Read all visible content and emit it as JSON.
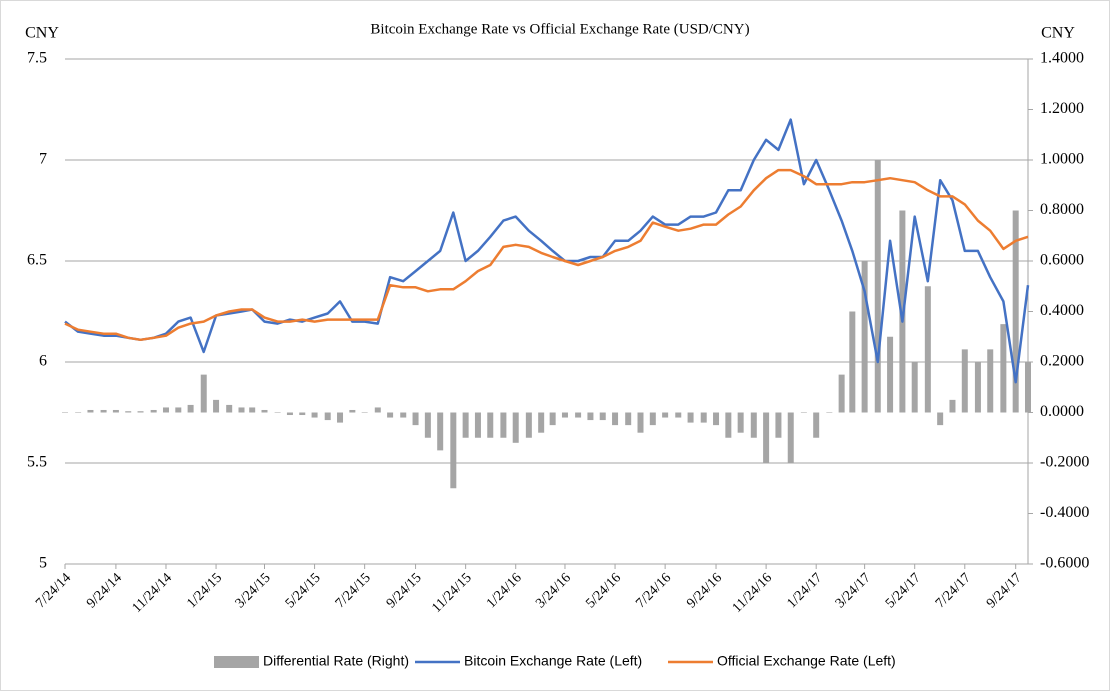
{
  "chart_data": {
    "type": "bar-line",
    "title": "Bitcoin Exchange Rate vs Official Exchange Rate (USD/CNY)",
    "y_label": "CNY",
    "y2_label": "CNY",
    "x": [
      "7/24/14",
      "8/9/14",
      "8/24/14",
      "9/9/14",
      "9/24/14",
      "10/9/14",
      "10/24/14",
      "11/9/14",
      "11/24/14",
      "12/9/14",
      "12/24/14",
      "1/9/15",
      "1/24/15",
      "2/9/15",
      "2/24/15",
      "3/9/15",
      "3/24/15",
      "4/9/15",
      "4/24/15",
      "5/9/15",
      "5/24/15",
      "6/9/15",
      "6/24/15",
      "7/9/15",
      "7/24/15",
      "8/9/15",
      "8/24/15",
      "9/9/15",
      "9/24/15",
      "10/9/15",
      "10/24/15",
      "11/9/15",
      "11/24/15",
      "12/9/15",
      "12/24/15",
      "1/9/16",
      "1/24/16",
      "2/9/16",
      "2/24/16",
      "3/9/16",
      "3/24/16",
      "4/9/16",
      "4/24/16",
      "5/9/16",
      "5/24/16",
      "6/9/16",
      "6/24/16",
      "7/9/16",
      "7/24/16",
      "8/9/16",
      "8/24/16",
      "9/9/16",
      "9/24/16",
      "10/9/16",
      "10/24/16",
      "11/9/16",
      "11/24/16",
      "12/9/16",
      "12/24/16",
      "1/9/17",
      "1/24/17",
      "2/9/17",
      "2/24/17",
      "3/9/17",
      "3/24/17",
      "4/9/17",
      "4/24/17",
      "5/9/17",
      "5/24/17",
      "6/9/17",
      "6/24/17",
      "7/9/17",
      "7/24/17",
      "8/9/17",
      "8/24/17",
      "9/9/17",
      "9/24/17",
      "10/9/17"
    ],
    "xlim": [
      "7/24/14",
      "10/9/17"
    ],
    "xticks": [
      "7/24/14",
      "9/24/14",
      "11/24/14",
      "1/24/15",
      "3/24/15",
      "5/24/15",
      "7/24/15",
      "9/24/15",
      "11/24/15",
      "1/24/16",
      "3/24/16",
      "5/24/16",
      "7/24/16",
      "9/24/16",
      "11/24/16",
      "1/24/17",
      "3/24/17",
      "5/24/17",
      "7/24/17",
      "9/24/17"
    ],
    "series": [
      {
        "name": "Differential Rate (Right)",
        "color": "#a5a5a5",
        "axis": "y2",
        "values": [
          0,
          0,
          0.01,
          0.01,
          0.01,
          0.005,
          0.005,
          0.01,
          0.02,
          0.02,
          0.03,
          0.15,
          0.05,
          0.03,
          0.02,
          0.02,
          0.01,
          0,
          -0.01,
          -0.01,
          -0.02,
          -0.03,
          -0.04,
          0.01,
          0,
          0.02,
          -0.02,
          -0.02,
          -0.05,
          -0.1,
          -0.15,
          -0.3,
          -0.1,
          -0.1,
          -0.1,
          -0.1,
          -0.12,
          -0.1,
          -0.08,
          -0.05,
          -0.02,
          -0.02,
          -0.03,
          -0.03,
          -0.05,
          -0.05,
          -0.08,
          -0.05,
          -0.02,
          -0.02,
          -0.04,
          -0.04,
          -0.05,
          -0.1,
          -0.08,
          -0.1,
          -0.2,
          -0.1,
          -0.2,
          0,
          -0.1,
          0,
          0.15,
          0.4,
          0.6,
          1.0,
          0.3,
          0.8,
          0.2,
          0.5,
          -0.05,
          0.05,
          0.25,
          0.2,
          0.25,
          0.35,
          0.8,
          0.2
        ]
      },
      {
        "name": "Bitcoin Exchange Rate (Left)",
        "color": "#4472c4",
        "values": [
          6.2,
          6.15,
          6.14,
          6.13,
          6.13,
          6.12,
          6.11,
          6.12,
          6.14,
          6.2,
          6.22,
          6.05,
          6.23,
          6.24,
          6.25,
          6.26,
          6.2,
          6.19,
          6.21,
          6.2,
          6.22,
          6.24,
          6.3,
          6.2,
          6.2,
          6.19,
          6.42,
          6.4,
          6.45,
          6.5,
          6.55,
          6.74,
          6.5,
          6.55,
          6.62,
          6.7,
          6.72,
          6.65,
          6.6,
          6.55,
          6.5,
          6.5,
          6.52,
          6.52,
          6.6,
          6.6,
          6.65,
          6.72,
          6.68,
          6.68,
          6.72,
          6.72,
          6.74,
          6.85,
          6.85,
          7.0,
          7.1,
          7.05,
          7.2,
          6.88,
          7.0,
          6.85,
          6.7,
          6.55,
          6.35,
          6.0,
          6.6,
          6.2,
          6.72,
          6.4,
          6.9,
          6.8,
          6.55,
          6.55,
          6.42,
          6.3,
          5.9,
          6.38
        ]
      },
      {
        "name": "Official Exchange Rate (Left)",
        "color": "#ed7d31",
        "values": [
          6.19,
          6.16,
          6.15,
          6.14,
          6.14,
          6.12,
          6.11,
          6.12,
          6.13,
          6.17,
          6.19,
          6.2,
          6.23,
          6.25,
          6.26,
          6.26,
          6.22,
          6.2,
          6.2,
          6.21,
          6.2,
          6.21,
          6.21,
          6.21,
          6.21,
          6.21,
          6.38,
          6.37,
          6.37,
          6.35,
          6.36,
          6.36,
          6.4,
          6.45,
          6.48,
          6.57,
          6.58,
          6.57,
          6.54,
          6.52,
          6.5,
          6.48,
          6.5,
          6.52,
          6.55,
          6.57,
          6.6,
          6.69,
          6.67,
          6.65,
          6.66,
          6.68,
          6.68,
          6.73,
          6.77,
          6.85,
          6.91,
          6.95,
          6.95,
          6.92,
          6.88,
          6.88,
          6.88,
          6.89,
          6.89,
          6.9,
          6.91,
          6.9,
          6.89,
          6.85,
          6.82,
          6.82,
          6.78,
          6.7,
          6.65,
          6.56,
          6.6,
          6.62
        ]
      }
    ],
    "ylim": [
      5,
      7.5
    ],
    "yticks": [
      5,
      5.5,
      6,
      6.5,
      7,
      7.5
    ],
    "y2lim": [
      -0.6,
      1.4
    ],
    "y2ticks": [
      {
        "value": -0.6,
        "label": "-0.6000"
      },
      {
        "value": -0.4,
        "label": "-0.4000"
      },
      {
        "value": -0.2,
        "label": "-0.2000"
      },
      {
        "value": 0,
        "label": "0.0000"
      },
      {
        "value": 0.2,
        "label": "0.2000"
      },
      {
        "value": 0.4,
        "label": "0.4000"
      },
      {
        "value": 0.6,
        "label": "0.6000"
      },
      {
        "value": 0.8,
        "label": "0.8000"
      },
      {
        "value": 1.0,
        "label": "1.0000"
      },
      {
        "value": 1.2,
        "label": "1.2000"
      },
      {
        "value": 1.4,
        "label": "1.4000"
      }
    ],
    "grid": true,
    "legend": "bottom"
  }
}
